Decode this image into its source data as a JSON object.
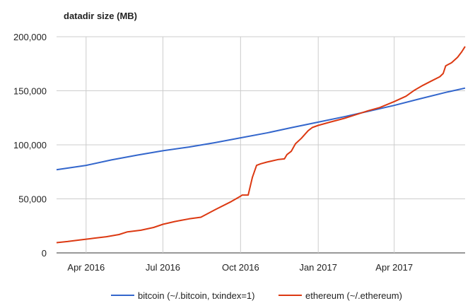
{
  "chart_data": {
    "type": "line",
    "title": "datadir size (MB)",
    "xlabel": "",
    "ylabel": "",
    "x_range": [
      "2016-02-26",
      "2017-06-24"
    ],
    "ylim": [
      0,
      200000
    ],
    "y_ticks": [
      0,
      50000,
      100000,
      150000,
      200000
    ],
    "y_tick_labels": [
      "0",
      "50,000",
      "100,000",
      "150,000",
      "200,000"
    ],
    "x_ticks": [
      {
        "date": "2016-04-01",
        "label": "Apr 2016"
      },
      {
        "date": "2016-07-01",
        "label": "Jul 2016"
      },
      {
        "date": "2016-10-01",
        "label": "Oct 2016"
      },
      {
        "date": "2017-01-01",
        "label": "Jan 2017"
      },
      {
        "date": "2017-04-01",
        "label": "Apr 2017"
      }
    ],
    "grid": true,
    "legend_position": "bottom",
    "series": [
      {
        "name": "bitcoin (~/.bitcoin, txindex=1)",
        "color": "#3366cc",
        "points": [
          [
            "2016-02-26",
            77000
          ],
          [
            "2016-04-01",
            81000
          ],
          [
            "2016-05-01",
            86000
          ],
          [
            "2016-06-01",
            90500
          ],
          [
            "2016-07-01",
            94500
          ],
          [
            "2016-08-01",
            98000
          ],
          [
            "2016-09-01",
            102000
          ],
          [
            "2016-10-01",
            106500
          ],
          [
            "2016-11-01",
            111000
          ],
          [
            "2016-12-01",
            116000
          ],
          [
            "2017-01-01",
            121000
          ],
          [
            "2017-02-01",
            126000
          ],
          [
            "2017-03-01",
            131000
          ],
          [
            "2017-04-01",
            136500
          ],
          [
            "2017-05-01",
            142500
          ],
          [
            "2017-06-01",
            148500
          ],
          [
            "2017-06-24",
            152500
          ]
        ]
      },
      {
        "name": "ethereum (~/.ethereum)",
        "color": "#dc3912",
        "points": [
          [
            "2016-02-26",
            9500
          ],
          [
            "2016-03-10",
            10500
          ],
          [
            "2016-03-25",
            12000
          ],
          [
            "2016-04-10",
            13500
          ],
          [
            "2016-04-25",
            15000
          ],
          [
            "2016-05-10",
            17000
          ],
          [
            "2016-05-20",
            19500
          ],
          [
            "2016-06-05",
            21000
          ],
          [
            "2016-06-20",
            23500
          ],
          [
            "2016-07-01",
            26500
          ],
          [
            "2016-07-15",
            29000
          ],
          [
            "2016-08-01",
            31500
          ],
          [
            "2016-08-15",
            33000
          ],
          [
            "2016-09-01",
            40000
          ],
          [
            "2016-09-20",
            47500
          ],
          [
            "2016-10-01",
            52500
          ],
          [
            "2016-10-03",
            53500
          ],
          [
            "2016-10-10",
            53500
          ],
          [
            "2016-10-15",
            70000
          ],
          [
            "2016-10-20",
            81000
          ],
          [
            "2016-10-25",
            82500
          ],
          [
            "2016-11-01",
            84000
          ],
          [
            "2016-11-15",
            86500
          ],
          [
            "2016-11-22",
            87000
          ],
          [
            "2016-11-25",
            91000
          ],
          [
            "2016-11-30",
            94000
          ],
          [
            "2016-12-05",
            101000
          ],
          [
            "2016-12-12",
            106000
          ],
          [
            "2016-12-20",
            113000
          ],
          [
            "2016-12-25",
            116000
          ],
          [
            "2017-01-01",
            118000
          ],
          [
            "2017-01-15",
            121000
          ],
          [
            "2017-02-01",
            124500
          ],
          [
            "2017-02-15",
            128000
          ],
          [
            "2017-03-01",
            131500
          ],
          [
            "2017-03-15",
            134500
          ],
          [
            "2017-04-01",
            140000
          ],
          [
            "2017-04-15",
            145000
          ],
          [
            "2017-04-25",
            150500
          ],
          [
            "2017-05-05",
            155000
          ],
          [
            "2017-05-15",
            159000
          ],
          [
            "2017-05-25",
            163000
          ],
          [
            "2017-05-29",
            166000
          ],
          [
            "2017-06-01",
            173000
          ],
          [
            "2017-06-08",
            176000
          ],
          [
            "2017-06-15",
            181000
          ],
          [
            "2017-06-20",
            186000
          ],
          [
            "2017-06-24",
            191000
          ]
        ]
      }
    ]
  }
}
